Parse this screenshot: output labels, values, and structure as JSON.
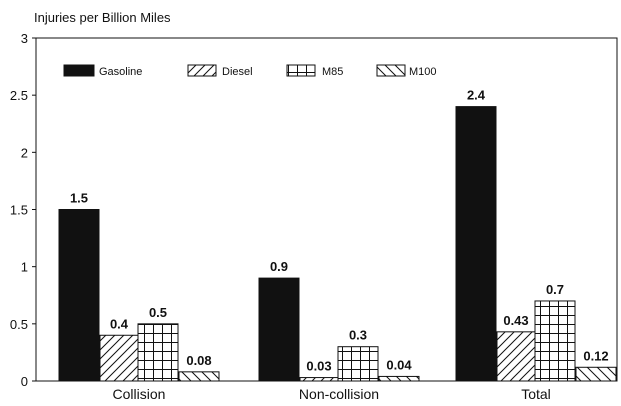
{
  "chart_data": {
    "type": "bar",
    "title": "Injuries per Billion Miles",
    "categories": [
      "Collision",
      "Non-collision",
      "Total"
    ],
    "series": [
      {
        "name": "Gasoline",
        "values": [
          1.5,
          0.9,
          2.4
        ],
        "labels": [
          "1.5",
          "0.9",
          "2.4"
        ],
        "pattern": "solid"
      },
      {
        "name": "Diesel",
        "values": [
          0.4,
          0.03,
          0.43
        ],
        "labels": [
          "0.4",
          "0.03",
          "0.43"
        ],
        "pattern": "diagonal-forward"
      },
      {
        "name": "M85",
        "values": [
          0.5,
          0.3,
          0.7
        ],
        "labels": [
          "0.5",
          "0.3",
          "0.7"
        ],
        "pattern": "grid"
      },
      {
        "name": "M100",
        "values": [
          0.08,
          0.04,
          0.12
        ],
        "labels": [
          "0.08",
          "0.04",
          "0.12"
        ],
        "pattern": "diagonal-back"
      }
    ],
    "yticks": [
      "0",
      "0.5",
      "1",
      "1.5",
      "2",
      "2.5",
      "3"
    ],
    "ylim": [
      0,
      3
    ],
    "legend_position": "top-left",
    "grid": false,
    "colors": {
      "ink": "#111111",
      "background": "#ffffff"
    }
  }
}
